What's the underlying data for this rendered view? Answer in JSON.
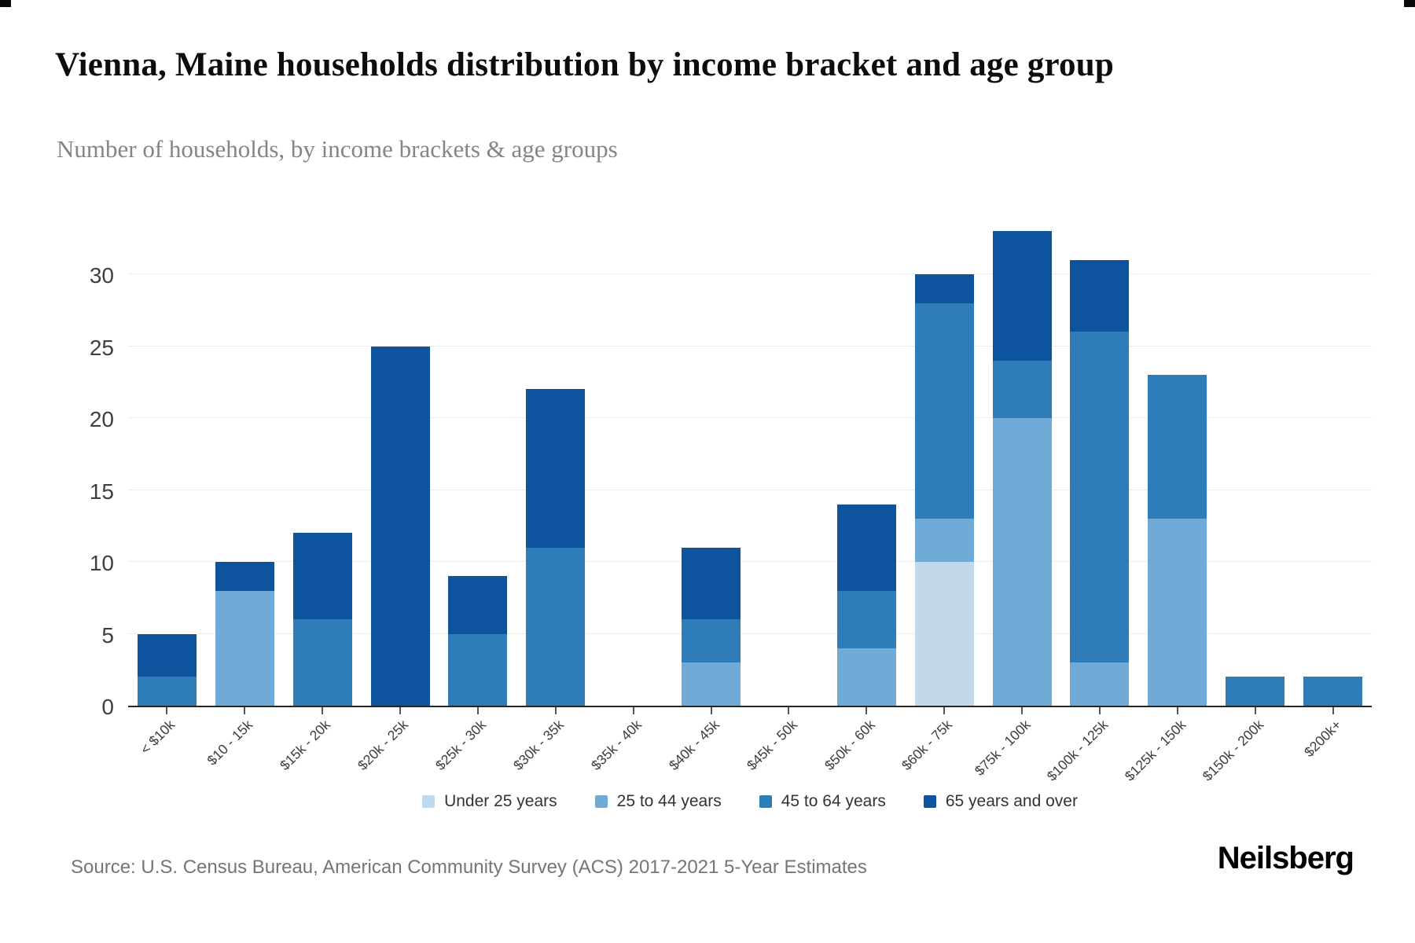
{
  "header": {
    "title": "Vienna, Maine households distribution by income bracket and age group",
    "subtitle": "Number of households, by income brackets & age groups"
  },
  "footer": {
    "source": "Source: U.S. Census Bureau, American Community Survey (ACS) 2017-2021 5-Year Estimates",
    "logo": "Neilsberg"
  },
  "chart_data": {
    "type": "bar",
    "stacked": true,
    "title": "Vienna, Maine households distribution by income bracket and age group",
    "xlabel": "",
    "ylabel": "",
    "ylim": [
      0,
      33
    ],
    "yticks": [
      0,
      5,
      10,
      15,
      20,
      25,
      30
    ],
    "grid": true,
    "legend_position": "bottom",
    "categories": [
      "< $10k",
      "$10 - 15k",
      "$15k - 20k",
      "$20k - 25k",
      "$25k - 30k",
      "$30k - 35k",
      "$35k - 40k",
      "$40k - 45k",
      "$45k - 50k",
      "$50k - 60k",
      "$60k - 75k",
      "$75k - 100k",
      "$100k - 125k",
      "$125k - 150k",
      "$150k - 200k",
      "$200k+"
    ],
    "series": [
      {
        "name": "Under 25 years",
        "color": "#c2d9ec",
        "values": [
          0,
          0,
          0,
          0,
          0,
          0,
          0,
          0,
          0,
          0,
          10,
          0,
          0,
          0,
          0,
          0
        ]
      },
      {
        "name": "25 to 44 years",
        "color": "#6fabd6",
        "values": [
          0,
          8,
          0,
          0,
          0,
          0,
          0,
          3,
          0,
          4,
          3,
          20,
          3,
          13,
          0,
          0
        ]
      },
      {
        "name": "45 to 64 years",
        "color": "#2e7db8",
        "values": [
          2,
          0,
          6,
          0,
          5,
          11,
          0,
          3,
          0,
          4,
          15,
          4,
          23,
          10,
          2,
          2
        ]
      },
      {
        "name": "65 years and over",
        "color": "#0e539e",
        "values": [
          3,
          2,
          6,
          25,
          4,
          11,
          0,
          5,
          0,
          6,
          2,
          9,
          5,
          0,
          0,
          0
        ]
      }
    ],
    "totals": [
      5,
      10,
      12,
      25,
      9,
      22,
      0,
      11,
      0,
      14,
      30,
      33,
      31,
      23,
      2,
      2
    ]
  }
}
